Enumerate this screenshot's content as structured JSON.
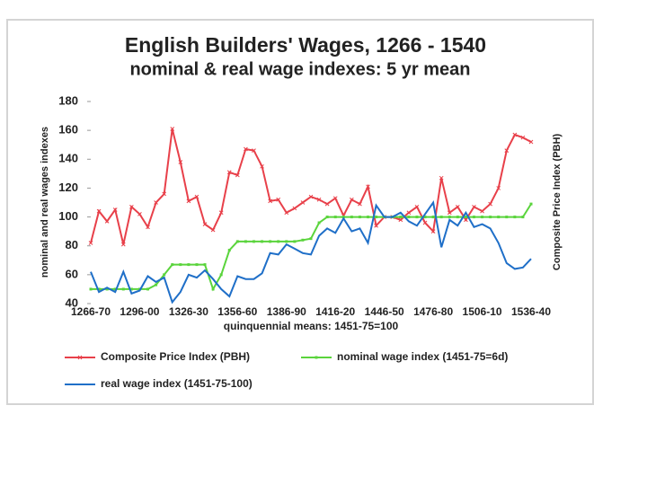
{
  "chart_data": {
    "type": "line",
    "title": "English Builders' Wages, 1266 - 1540",
    "subtitle": "nominal & real wage indexes: 5 yr mean",
    "y_label": "nominal and real wages indexes",
    "y2_label": "Composite Price Index (PBH)",
    "x_label": "quinquennial means: 1451-75=100",
    "categories": [
      "1266-70",
      null,
      null,
      null,
      null,
      null,
      "1296-00",
      null,
      null,
      null,
      null,
      null,
      "1326-30",
      null,
      null,
      null,
      null,
      null,
      "1356-60",
      null,
      null,
      null,
      null,
      null,
      "1386-90",
      null,
      null,
      null,
      null,
      null,
      "1416-20",
      null,
      null,
      null,
      null,
      null,
      "1446-50",
      null,
      null,
      null,
      null,
      null,
      "1476-80",
      null,
      null,
      null,
      null,
      null,
      "1506-10",
      null,
      null,
      null,
      null,
      null,
      "1536-40"
    ],
    "series": [
      {
        "name": "Composite Price Index (PBH)",
        "color": "#e8404a",
        "marker": "x",
        "values": [
          82,
          104,
          97,
          105,
          81,
          107,
          102,
          93,
          110,
          116,
          161,
          138,
          111,
          114,
          95,
          91,
          103,
          131,
          129,
          147,
          146,
          135,
          111,
          112,
          103,
          106,
          110,
          114,
          112,
          109,
          113,
          101,
          112,
          109,
          121,
          94,
          100,
          100,
          98,
          103,
          107,
          96,
          90,
          127,
          103,
          107,
          98,
          107,
          104,
          109,
          120,
          146,
          157,
          155,
          152
        ]
      },
      {
        "name": "nominal wage index (1451-75=6d)",
        "color": "#5ad43c",
        "marker": "square",
        "values": [
          50,
          50,
          50,
          50,
          50,
          50,
          50,
          50,
          53,
          60,
          67,
          67,
          67,
          67,
          67,
          50,
          60,
          77,
          83,
          83,
          83,
          83,
          83,
          83,
          83,
          83,
          84,
          85,
          96,
          100,
          100,
          100,
          100,
          100,
          100,
          100,
          100,
          100,
          100,
          100,
          100,
          100,
          100,
          100,
          100,
          100,
          100,
          100,
          100,
          100,
          100,
          100,
          100,
          100,
          109
        ]
      },
      {
        "name": "real wage index (1451-75-100)",
        "color": "#1f6fc8",
        "marker": null,
        "values": [
          62,
          48,
          51,
          48,
          62,
          47,
          49,
          59,
          55,
          58,
          41,
          48,
          60,
          58,
          63,
          57,
          50,
          45,
          59,
          57,
          57,
          61,
          75,
          74,
          81,
          78,
          75,
          74,
          87,
          92,
          89,
          99,
          90,
          92,
          82,
          108,
          100,
          100,
          103,
          97,
          94,
          102,
          110,
          79,
          98,
          94,
          103,
          93,
          95,
          92,
          82,
          68,
          64,
          65,
          71
        ]
      }
    ],
    "ylim": [
      40,
      180
    ],
    "yticks": [
      40,
      60,
      80,
      100,
      120,
      140,
      160,
      180
    ],
    "grid": false
  }
}
